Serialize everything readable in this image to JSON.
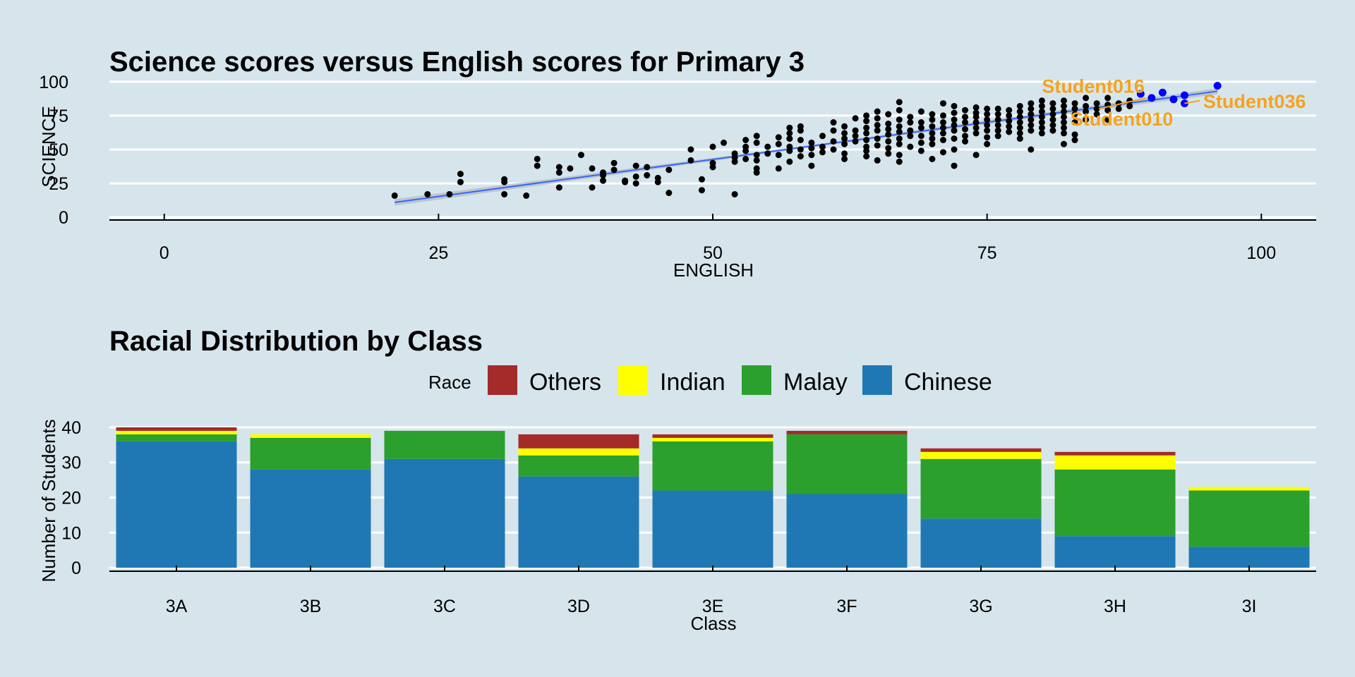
{
  "chart_data": [
    {
      "type": "scatter",
      "title": "Science scores versus English scores for Primary 3",
      "xlabel": "ENGLISH",
      "ylabel": "SCIENCE",
      "xlim": [
        -5,
        105
      ],
      "ylim": [
        -2,
        102
      ],
      "xticks": [
        "0",
        "25",
        "50",
        "75",
        "100"
      ],
      "xtick_values": [
        0,
        25,
        50,
        75,
        100
      ],
      "yticks": [
        "0",
        "25",
        "50",
        "75",
        "100"
      ],
      "ytick_values": [
        0,
        25,
        50,
        75,
        100
      ],
      "grid": "horizontal",
      "point_color": "#000000",
      "highlight_color": "#0000ff",
      "trend_color": "#3366ff",
      "annotation_color": "#f5a31c",
      "points": [
        [
          21,
          16
        ],
        [
          24,
          17
        ],
        [
          26,
          17
        ],
        [
          27,
          26
        ],
        [
          27,
          32
        ],
        [
          31,
          26
        ],
        [
          31,
          28
        ],
        [
          31,
          17
        ],
        [
          33,
          16
        ],
        [
          34,
          38
        ],
        [
          34,
          43
        ],
        [
          36,
          22
        ],
        [
          36,
          33
        ],
        [
          36,
          37
        ],
        [
          37,
          36
        ],
        [
          38,
          46
        ],
        [
          39,
          22
        ],
        [
          39,
          36
        ],
        [
          40,
          27
        ],
        [
          40,
          31
        ],
        [
          40,
          33
        ],
        [
          41,
          35
        ],
        [
          41,
          40
        ],
        [
          42,
          26
        ],
        [
          42,
          27
        ],
        [
          43,
          25
        ],
        [
          43,
          30
        ],
        [
          43,
          38
        ],
        [
          44,
          31
        ],
        [
          44,
          37
        ],
        [
          45,
          29
        ],
        [
          45,
          26
        ],
        [
          46,
          18
        ],
        [
          46,
          35
        ],
        [
          48,
          42
        ],
        [
          48,
          50
        ],
        [
          49,
          20
        ],
        [
          49,
          28
        ],
        [
          50,
          37
        ],
        [
          50,
          40
        ],
        [
          50,
          52
        ],
        [
          51,
          55
        ],
        [
          52,
          17
        ],
        [
          52,
          41
        ],
        [
          52,
          44
        ],
        [
          52,
          47
        ],
        [
          53,
          43
        ],
        [
          53,
          49
        ],
        [
          53,
          52
        ],
        [
          53,
          57
        ],
        [
          54,
          33
        ],
        [
          54,
          36
        ],
        [
          54,
          42
        ],
        [
          54,
          46
        ],
        [
          54,
          55
        ],
        [
          54,
          60
        ],
        [
          55,
          47
        ],
        [
          55,
          52
        ],
        [
          56,
          36
        ],
        [
          56,
          46
        ],
        [
          56,
          54
        ],
        [
          56,
          59
        ],
        [
          57,
          41
        ],
        [
          57,
          49
        ],
        [
          57,
          52
        ],
        [
          57,
          58
        ],
        [
          57,
          62
        ],
        [
          57,
          66
        ],
        [
          58,
          45
        ],
        [
          58,
          50
        ],
        [
          58,
          57
        ],
        [
          58,
          64
        ],
        [
          58,
          67
        ],
        [
          59,
          38
        ],
        [
          59,
          46
        ],
        [
          59,
          51
        ],
        [
          59,
          55
        ],
        [
          60,
          48
        ],
        [
          60,
          52
        ],
        [
          60,
          60
        ],
        [
          61,
          50
        ],
        [
          61,
          56
        ],
        [
          61,
          64
        ],
        [
          61,
          70
        ],
        [
          62,
          43
        ],
        [
          62,
          47
        ],
        [
          62,
          54
        ],
        [
          62,
          58
        ],
        [
          62,
          62
        ],
        [
          62,
          67
        ],
        [
          63,
          56
        ],
        [
          63,
          60
        ],
        [
          63,
          64
        ],
        [
          63,
          73
        ],
        [
          64,
          45
        ],
        [
          64,
          49
        ],
        [
          64,
          52
        ],
        [
          64,
          57
        ],
        [
          64,
          62
        ],
        [
          64,
          66
        ],
        [
          64,
          71
        ],
        [
          64,
          75
        ],
        [
          65,
          42
        ],
        [
          65,
          53
        ],
        [
          65,
          58
        ],
        [
          65,
          64
        ],
        [
          65,
          68
        ],
        [
          65,
          73
        ],
        [
          65,
          78
        ],
        [
          66,
          47
        ],
        [
          66,
          51
        ],
        [
          66,
          56
        ],
        [
          66,
          61
        ],
        [
          66,
          65
        ],
        [
          66,
          69
        ],
        [
          66,
          76
        ],
        [
          67,
          41
        ],
        [
          67,
          46
        ],
        [
          67,
          54
        ],
        [
          67,
          58
        ],
        [
          67,
          63
        ],
        [
          67,
          67
        ],
        [
          67,
          72
        ],
        [
          67,
          79
        ],
        [
          67,
          85
        ],
        [
          68,
          52
        ],
        [
          68,
          60
        ],
        [
          68,
          64
        ],
        [
          68,
          70
        ],
        [
          68,
          74
        ],
        [
          69,
          49
        ],
        [
          69,
          55
        ],
        [
          69,
          60
        ],
        [
          69,
          66
        ],
        [
          69,
          70
        ],
        [
          69,
          78
        ],
        [
          70,
          43
        ],
        [
          70,
          54
        ],
        [
          70,
          58
        ],
        [
          70,
          62
        ],
        [
          70,
          67
        ],
        [
          70,
          72
        ],
        [
          70,
          76
        ],
        [
          71,
          48
        ],
        [
          71,
          57
        ],
        [
          71,
          62
        ],
        [
          71,
          66
        ],
        [
          71,
          70
        ],
        [
          71,
          75
        ],
        [
          71,
          84
        ],
        [
          72,
          38
        ],
        [
          72,
          50
        ],
        [
          72,
          58
        ],
        [
          72,
          64
        ],
        [
          72,
          68
        ],
        [
          72,
          72
        ],
        [
          72,
          77
        ],
        [
          72,
          82
        ],
        [
          73,
          56
        ],
        [
          73,
          60
        ],
        [
          73,
          65
        ],
        [
          73,
          70
        ],
        [
          73,
          74
        ],
        [
          73,
          79
        ],
        [
          74,
          46
        ],
        [
          74,
          62
        ],
        [
          74,
          66
        ],
        [
          74,
          70
        ],
        [
          74,
          74
        ],
        [
          74,
          77
        ],
        [
          74,
          81
        ],
        [
          75,
          54
        ],
        [
          75,
          59
        ],
        [
          75,
          64
        ],
        [
          75,
          68
        ],
        [
          75,
          72
        ],
        [
          75,
          76
        ],
        [
          75,
          80
        ],
        [
          76,
          60
        ],
        [
          76,
          64
        ],
        [
          76,
          68
        ],
        [
          76,
          72
        ],
        [
          76,
          76
        ],
        [
          76,
          80
        ],
        [
          77,
          63
        ],
        [
          77,
          67
        ],
        [
          77,
          71
        ],
        [
          77,
          75
        ],
        [
          77,
          79
        ],
        [
          78,
          58
        ],
        [
          78,
          62
        ],
        [
          78,
          66
        ],
        [
          78,
          70
        ],
        [
          78,
          74
        ],
        [
          78,
          78
        ],
        [
          78,
          82
        ],
        [
          79,
          50
        ],
        [
          79,
          64
        ],
        [
          79,
          68
        ],
        [
          79,
          72
        ],
        [
          79,
          76
        ],
        [
          79,
          80
        ],
        [
          79,
          84
        ],
        [
          80,
          62
        ],
        [
          80,
          66
        ],
        [
          80,
          70
        ],
        [
          80,
          74
        ],
        [
          80,
          78
        ],
        [
          80,
          82
        ],
        [
          80,
          86
        ],
        [
          81,
          64
        ],
        [
          81,
          68
        ],
        [
          81,
          72
        ],
        [
          81,
          76
        ],
        [
          81,
          80
        ],
        [
          81,
          84
        ],
        [
          82,
          54
        ],
        [
          82,
          62
        ],
        [
          82,
          66
        ],
        [
          82,
          70
        ],
        [
          82,
          74
        ],
        [
          82,
          78
        ],
        [
          82,
          82
        ],
        [
          82,
          86
        ],
        [
          83,
          57
        ],
        [
          83,
          61
        ],
        [
          83,
          70
        ],
        [
          83,
          76
        ],
        [
          83,
          80
        ],
        [
          83,
          84
        ],
        [
          84,
          72
        ],
        [
          84,
          78
        ],
        [
          84,
          82
        ],
        [
          84,
          88
        ],
        [
          85,
          76
        ],
        [
          85,
          80
        ],
        [
          85,
          84
        ],
        [
          86,
          72
        ],
        [
          86,
          79
        ],
        [
          86,
          83
        ],
        [
          86,
          88
        ],
        [
          87,
          80
        ],
        [
          87,
          84
        ],
        [
          88,
          82
        ],
        [
          88,
          86
        ]
      ],
      "highlight_points": [
        [
          89,
          91
        ],
        [
          90,
          88
        ],
        [
          91,
          92
        ],
        [
          92,
          87
        ],
        [
          93,
          90
        ],
        [
          93,
          84
        ],
        [
          96,
          97
        ]
      ],
      "trend": [
        [
          21,
          11
        ],
        [
          96,
          93
        ]
      ],
      "annotations": [
        {
          "label": "Student016",
          "x": 80,
          "y": 97
        },
        {
          "label": "Student036",
          "x": 94.7,
          "y": 86
        },
        {
          "label": "Student010",
          "x": 82.6,
          "y": 73
        }
      ]
    },
    {
      "type": "bar",
      "stacked": true,
      "title": "Racial Distribution by Class",
      "xlabel": "Class",
      "ylabel": "Number of Students",
      "ylim": [
        -1,
        42
      ],
      "yticks": [
        "0",
        "10",
        "20",
        "30",
        "40"
      ],
      "ytick_values": [
        0,
        10,
        20,
        30,
        40
      ],
      "grid": "horizontal",
      "legend_title": "Race",
      "legend_position": "top",
      "categories": [
        "3A",
        "3B",
        "3C",
        "3D",
        "3E",
        "3F",
        "3G",
        "3H",
        "3I"
      ],
      "series": [
        {
          "name": "Chinese",
          "color": "#1f78b4",
          "values": [
            36,
            28,
            31,
            26,
            22,
            21,
            14,
            9,
            6
          ]
        },
        {
          "name": "Malay",
          "color": "#2ca02c",
          "values": [
            2,
            9,
            8,
            6,
            14,
            17,
            17,
            19,
            16
          ]
        },
        {
          "name": "Indian",
          "color": "#ffff00",
          "values": [
            1,
            1,
            0,
            2,
            1,
            0,
            2,
            4,
            1
          ]
        },
        {
          "name": "Others",
          "color": "#a52a2a",
          "values": [
            1,
            0,
            0,
            4,
            1,
            1,
            1,
            1,
            0
          ]
        }
      ],
      "legend_order": [
        "Others",
        "Indian",
        "Malay",
        "Chinese"
      ]
    }
  ]
}
